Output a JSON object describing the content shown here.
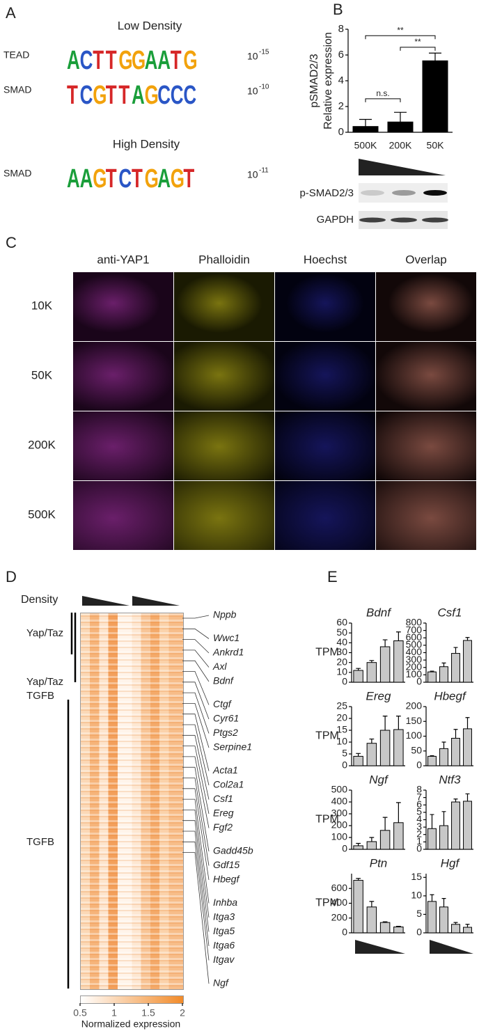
{
  "panels": {
    "A": {
      "label": "A",
      "low_title": "Low Density",
      "high_title": "High Density",
      "motifs": [
        {
          "name": "TEAD",
          "letters": [
            "A",
            "C",
            "T",
            "T",
            "G",
            "G",
            "A",
            "A",
            "T",
            "G"
          ],
          "p_base": "10",
          "p_exp": "-15"
        },
        {
          "name": "SMAD",
          "letters": [
            "T",
            "C",
            "G",
            "T",
            "T",
            "A",
            "G",
            "C",
            "C",
            "C"
          ],
          "p_base": "10",
          "p_exp": "-10"
        },
        {
          "name": "SMAD",
          "letters": [
            "A",
            "A",
            "G",
            "T",
            "C",
            "T",
            "G",
            "A",
            "G",
            "T"
          ],
          "p_base": "10",
          "p_exp": "-11"
        }
      ]
    },
    "C": {
      "label": "C",
      "headers": [
        "anti-YAP1",
        "Phalloidin",
        "Hoechst",
        "Overlap"
      ],
      "rows": [
        "10K",
        "50K",
        "200K",
        "500K"
      ]
    },
    "D": {
      "label": "D",
      "density": "Density",
      "groups": [
        "Yap/Taz",
        "Yap/Taz",
        "TGFB",
        "TGFB"
      ],
      "genes": [
        "Nppb",
        "Wwc1",
        "Ankrd1",
        "Axl",
        "Bdnf",
        "Ctgf",
        "Cyr61",
        "Ptgs2",
        "Serpine1",
        "Acta1",
        "Col2a1",
        "Csf1",
        "Ereg",
        "Fgf2",
        "Gadd45b",
        "Gdf15",
        "Hbegf",
        "Inhba",
        "Itga3",
        "Itga5",
        "Itga6",
        "Itgav",
        "Ngf"
      ],
      "colorbar_lim": [
        0.5,
        2
      ],
      "colorbar_ticks": [
        0.5,
        1,
        1.5,
        2
      ],
      "colorbar_label": "Normalized expression"
    }
  },
  "chart_data": [
    {
      "type": "bar",
      "panel_label": "B",
      "ylabel": [
        "pSMAD2/3",
        "Relative expression"
      ],
      "categories": [
        "500K",
        "200K",
        "50K"
      ],
      "values": [
        0.45,
        0.8,
        5.55
      ],
      "errors": [
        0.55,
        0.75,
        0.6
      ],
      "color": "#000000",
      "ylim": [
        0,
        8
      ],
      "yticks": [
        0,
        2,
        4,
        6,
        8
      ],
      "annotations": [
        "n.s.",
        "**",
        "**"
      ],
      "blot_labels": [
        "p-SMAD2/3",
        "GAPDH"
      ]
    },
    {
      "type": "bar",
      "panel_label": "E",
      "title": "Bdnf",
      "ylabel": "TPM",
      "categories": [
        null,
        null,
        null,
        null
      ],
      "values": [
        12,
        20,
        36,
        42
      ],
      "errors": [
        2,
        2,
        7,
        9
      ],
      "color": "#c8c8c8",
      "ylim": [
        0,
        60
      ],
      "yticks": [
        0,
        10,
        20,
        30,
        40,
        50,
        60
      ]
    },
    {
      "type": "bar",
      "title": "Csf1",
      "categories": [
        null,
        null,
        null,
        null
      ],
      "values": [
        140,
        210,
        390,
        565
      ],
      "errors": [
        10,
        50,
        80,
        40
      ],
      "color": "#c8c8c8",
      "ylim": [
        0,
        800
      ],
      "yticks": [
        0,
        100,
        200,
        300,
        400,
        500,
        600,
        700,
        800
      ]
    },
    {
      "type": "bar",
      "title": "Ereg",
      "ylabel": "TPM",
      "categories": [
        null,
        null,
        null,
        null
      ],
      "values": [
        4,
        9.5,
        15,
        15.3
      ],
      "errors": [
        1.2,
        1.8,
        6,
        5.7
      ],
      "color": "#c8c8c8",
      "ylim": [
        0,
        25
      ],
      "yticks": [
        0,
        5,
        10,
        15,
        20,
        25
      ]
    },
    {
      "type": "bar",
      "title": "Hbegf",
      "categories": [
        null,
        null,
        null,
        null
      ],
      "values": [
        32,
        58,
        93,
        125
      ],
      "errors": [
        2,
        22,
        30,
        38
      ],
      "color": "#c8c8c8",
      "ylim": [
        0,
        200
      ],
      "yticks": [
        0,
        50,
        100,
        150,
        200
      ]
    },
    {
      "type": "bar",
      "title": "Ngf",
      "ylabel": "TPM",
      "categories": [
        null,
        null,
        null,
        null
      ],
      "values": [
        30,
        65,
        160,
        225
      ],
      "errors": [
        20,
        35,
        110,
        170
      ],
      "color": "#c8c8c8",
      "ylim": [
        0,
        500
      ],
      "yticks": [
        0,
        100,
        200,
        300,
        400,
        500
      ]
    },
    {
      "type": "bar",
      "title": "Ntf3",
      "categories": [
        null,
        null,
        null,
        null
      ],
      "values": [
        2.8,
        3.2,
        6.4,
        6.5
      ],
      "errors": [
        1.9,
        1.9,
        0.4,
        1.0
      ],
      "color": "#c8c8c8",
      "ylim": [
        0,
        8
      ],
      "yticks": [
        0,
        1,
        2,
        3,
        4,
        5,
        6,
        7,
        8
      ]
    },
    {
      "type": "bar",
      "title": "Ptn",
      "ylabel": "TPM",
      "categories": [
        null,
        null,
        null,
        null
      ],
      "values": [
        710,
        350,
        140,
        80
      ],
      "errors": [
        25,
        75,
        10,
        8
      ],
      "color": "#c8c8c8",
      "ylim": [
        0,
        800
      ],
      "yticks": [
        0,
        200,
        400,
        600
      ]
    },
    {
      "type": "bar",
      "title": "Hgf",
      "categories": [
        null,
        null,
        null,
        null
      ],
      "values": [
        8.5,
        7,
        2.3,
        1.5
      ],
      "errors": [
        1.8,
        2.3,
        0.5,
        0.8
      ],
      "color": "#c8c8c8",
      "ylim": [
        0,
        16
      ],
      "yticks": [
        0,
        5,
        10,
        15
      ]
    }
  ]
}
